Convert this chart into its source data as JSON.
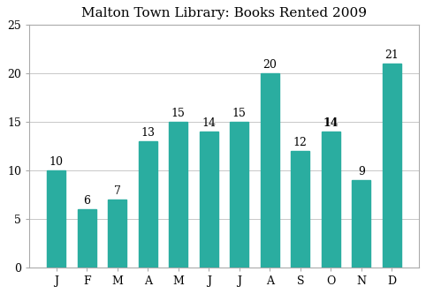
{
  "title": "Malton Town Library: Books Rented 2009",
  "categories": [
    "J",
    "F",
    "M",
    "A",
    "M",
    "J",
    "J",
    "A",
    "S",
    "O",
    "N",
    "D"
  ],
  "values": [
    10,
    6,
    7,
    13,
    15,
    14,
    15,
    20,
    12,
    14,
    9,
    21
  ],
  "bar_color": "#2aada0",
  "ylim": [
    0,
    25
  ],
  "yticks": [
    0,
    5,
    10,
    15,
    20,
    25
  ],
  "label_fontsize": 9,
  "title_fontsize": 11,
  "tick_fontsize": 9,
  "bold_labels": [
    9
  ],
  "background_color": "#ffffff",
  "grid_color": "#c8c8c8",
  "border_color": "#aaaaaa"
}
